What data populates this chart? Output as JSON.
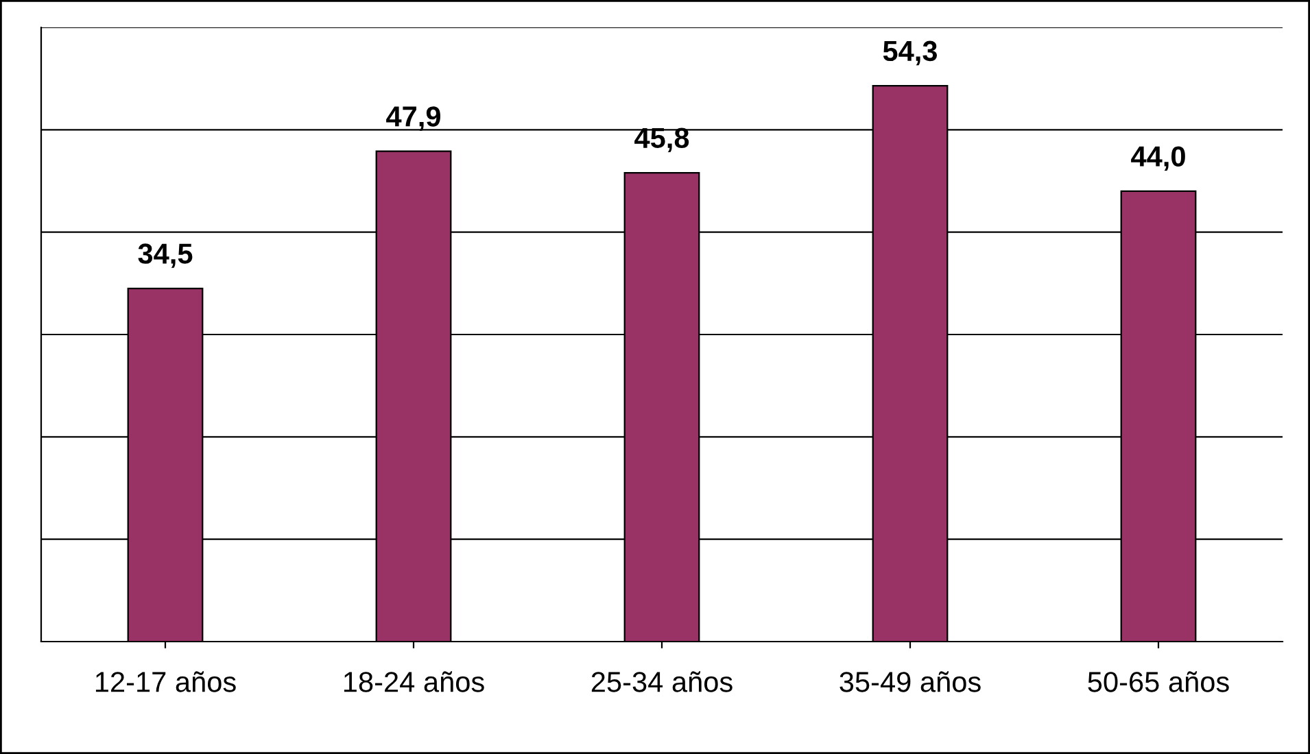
{
  "chart_data": {
    "type": "bar",
    "categories": [
      "12-17 años",
      "18-24 años",
      "25-34 años",
      "35-49 años",
      "50-65 años"
    ],
    "values": [
      34.5,
      47.9,
      45.8,
      54.3,
      44.0
    ],
    "value_labels": [
      "34,5",
      "47,9",
      "45,8",
      "54,3",
      "44,0"
    ],
    "color": "#993366",
    "ylim": [
      0,
      60
    ],
    "yticks": [
      {
        "value": 0,
        "label": null
      },
      {
        "value": 10,
        "label": null
      },
      {
        "value": 20,
        "label": null
      },
      {
        "value": 30,
        "label": null
      },
      {
        "value": 40,
        "label": null
      },
      {
        "value": 50,
        "label": null
      },
      {
        "value": 60,
        "label": null
      }
    ],
    "grid": "y",
    "tick_labels": "x"
  }
}
